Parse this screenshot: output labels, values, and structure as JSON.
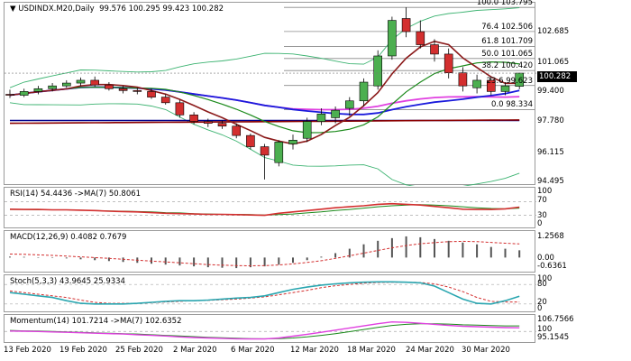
{
  "header": {
    "icon": "chart-arrow-down-icon",
    "symbol": "USDINDX.M20,Daily",
    "ohlc": "99.576 100.295 99.423 100.282"
  },
  "price_axis": [
    "102.685",
    "101.065",
    "99.400",
    "97.780",
    "96.115",
    "94.495"
  ],
  "current_price": "100.282",
  "fib_levels": [
    {
      "label": "100.0 103.795",
      "value": 103.795
    },
    {
      "label": "76.4 102.506",
      "value": 102.506
    },
    {
      "label": "61.8 101.709",
      "value": 101.709
    },
    {
      "label": "50.0 101.065",
      "value": 101.065
    },
    {
      "label": "38.2 100.420",
      "value": 100.42
    },
    {
      "label": "23.6 99.623",
      "value": 99.623
    },
    {
      "label": "0.0 98.334",
      "value": 98.334
    }
  ],
  "rsi": {
    "title": "RSI(14) 54.4436 ->MA(7) 50.8061",
    "axis": [
      "100",
      "70",
      "30",
      "0"
    ]
  },
  "macd": {
    "title": "MACD(12,26,9) 0.4082 0.7679",
    "axis": [
      "1.2568",
      "0.00",
      "-0.6361"
    ]
  },
  "stoch": {
    "title": "Stoch(5,3,3) 43.9645 25.9334",
    "axis": [
      "100",
      "80",
      "20",
      "0"
    ]
  },
  "momentum": {
    "title": "Momentum(14) 101.7214 ->MA(7) 102.6352",
    "axis": [
      "106.7566",
      "100",
      "95.1545"
    ]
  },
  "x_labels": [
    "13 Feb 2020",
    "19 Feb 2020",
    "25 Feb 2020",
    "2 Mar 2020",
    "6 Mar 2020",
    "12 Mar 2020",
    "18 Mar 2020",
    "24 Mar 2020",
    "30 Mar 2020"
  ],
  "colors": {
    "bull": "#4caf50",
    "bear": "#d32f2f",
    "ma_blue": "#1a1adc",
    "ma_red": "#8b1a1a",
    "ma_magenta": "#e040e0",
    "ma_green": "#1b8a1b",
    "band": "#3cb371",
    "dark_red": "#8b0000",
    "dark_blue": "#00008b",
    "stoch_main": "#2aa6b0"
  },
  "chart_data": {
    "type": "candlestick",
    "timeframe": "Daily",
    "candles": [
      {
        "o": 99.15,
        "h": 99.4,
        "l": 98.95,
        "c": 99.1
      },
      {
        "o": 99.1,
        "h": 99.45,
        "l": 99.0,
        "c": 99.3
      },
      {
        "o": 99.3,
        "h": 99.6,
        "l": 99.15,
        "c": 99.45
      },
      {
        "o": 99.45,
        "h": 99.75,
        "l": 99.3,
        "c": 99.6
      },
      {
        "o": 99.6,
        "h": 99.9,
        "l": 99.5,
        "c": 99.75
      },
      {
        "o": 99.75,
        "h": 100.05,
        "l": 99.6,
        "c": 99.9
      },
      {
        "o": 99.9,
        "h": 100.1,
        "l": 99.55,
        "c": 99.65
      },
      {
        "o": 99.65,
        "h": 99.8,
        "l": 99.35,
        "c": 99.45
      },
      {
        "o": 99.45,
        "h": 99.6,
        "l": 99.2,
        "c": 99.35
      },
      {
        "o": 99.35,
        "h": 99.5,
        "l": 99.15,
        "c": 99.3
      },
      {
        "o": 99.3,
        "h": 99.45,
        "l": 98.9,
        "c": 99.0
      },
      {
        "o": 99.0,
        "h": 99.15,
        "l": 98.6,
        "c": 98.7
      },
      {
        "o": 98.7,
        "h": 98.85,
        "l": 97.9,
        "c": 98.05
      },
      {
        "o": 98.05,
        "h": 98.2,
        "l": 97.55,
        "c": 97.7
      },
      {
        "o": 97.7,
        "h": 97.85,
        "l": 97.4,
        "c": 97.6
      },
      {
        "o": 97.6,
        "h": 97.75,
        "l": 97.3,
        "c": 97.45
      },
      {
        "o": 97.45,
        "h": 97.6,
        "l": 96.8,
        "c": 96.95
      },
      {
        "o": 96.95,
        "h": 97.05,
        "l": 96.2,
        "c": 96.35
      },
      {
        "o": 96.35,
        "h": 96.5,
        "l": 94.6,
        "c": 95.9
      },
      {
        "o": 95.5,
        "h": 96.7,
        "l": 95.3,
        "c": 96.6
      },
      {
        "o": 96.5,
        "h": 97.0,
        "l": 96.2,
        "c": 96.7
      },
      {
        "o": 96.8,
        "h": 97.9,
        "l": 96.6,
        "c": 97.7
      },
      {
        "o": 97.7,
        "h": 98.4,
        "l": 97.5,
        "c": 98.1
      },
      {
        "o": 97.9,
        "h": 98.5,
        "l": 97.6,
        "c": 98.3
      },
      {
        "o": 98.4,
        "h": 99.0,
        "l": 98.0,
        "c": 98.8
      },
      {
        "o": 98.8,
        "h": 100.0,
        "l": 98.5,
        "c": 99.8
      },
      {
        "o": 99.6,
        "h": 101.5,
        "l": 99.4,
        "c": 101.2
      },
      {
        "o": 101.2,
        "h": 103.3,
        "l": 101.0,
        "c": 103.1
      },
      {
        "o": 103.2,
        "h": 103.8,
        "l": 102.2,
        "c": 102.5
      },
      {
        "o": 102.5,
        "h": 103.1,
        "l": 101.6,
        "c": 101.8
      },
      {
        "o": 101.8,
        "h": 102.1,
        "l": 100.9,
        "c": 101.3
      },
      {
        "o": 101.3,
        "h": 101.6,
        "l": 100.0,
        "c": 100.3
      },
      {
        "o": 100.3,
        "h": 100.6,
        "l": 99.3,
        "c": 99.6
      },
      {
        "o": 99.5,
        "h": 100.2,
        "l": 99.2,
        "c": 99.9
      },
      {
        "o": 99.9,
        "h": 100.1,
        "l": 99.1,
        "c": 99.3
      },
      {
        "o": 99.3,
        "h": 99.8,
        "l": 99.1,
        "c": 99.6
      },
      {
        "o": 99.576,
        "h": 100.295,
        "l": 99.423,
        "c": 100.282
      }
    ],
    "ylim": [
      94.4,
      103.9
    ],
    "rsi": [
      48,
      47,
      47,
      46,
      46,
      45,
      44,
      42,
      41,
      40,
      38,
      36,
      35,
      34,
      33,
      33,
      32,
      31,
      30,
      36,
      40,
      44,
      48,
      52,
      55,
      58,
      62,
      64,
      62,
      60,
      56,
      52,
      48,
      47,
      47,
      49,
      54
    ],
    "rsi_ma": [
      47,
      47,
      46,
      46,
      46,
      45,
      44,
      43,
      42,
      41,
      40,
      38,
      37,
      35,
      34,
      33,
      33,
      32,
      31,
      32,
      34,
      37,
      40,
      44,
      47,
      51,
      55,
      58,
      60,
      61,
      60,
      58,
      55,
      52,
      50,
      49,
      51
    ],
    "macd_hist": [
      0.05,
      0.04,
      0.02,
      0.0,
      -0.05,
      -0.1,
      -0.15,
      -0.2,
      -0.25,
      -0.3,
      -0.35,
      -0.4,
      -0.45,
      -0.5,
      -0.55,
      -0.58,
      -0.6,
      -0.55,
      -0.5,
      -0.4,
      -0.3,
      -0.15,
      0.05,
      0.25,
      0.5,
      0.75,
      0.95,
      1.1,
      1.2,
      1.15,
      1.05,
      0.95,
      0.85,
      0.75,
      0.6,
      0.5,
      0.41
    ],
    "macd_signal": [
      0.2,
      0.18,
      0.15,
      0.12,
      0.08,
      0.04,
      0.0,
      -0.05,
      -0.1,
      -0.15,
      -0.2,
      -0.25,
      -0.3,
      -0.35,
      -0.4,
      -0.43,
      -0.46,
      -0.47,
      -0.46,
      -0.42,
      -0.36,
      -0.28,
      -0.18,
      -0.05,
      0.1,
      0.25,
      0.4,
      0.55,
      0.68,
      0.78,
      0.85,
      0.9,
      0.92,
      0.9,
      0.86,
      0.81,
      0.77
    ],
    "stoch_k": [
      55,
      50,
      45,
      40,
      30,
      22,
      20,
      20,
      20,
      22,
      25,
      28,
      30,
      30,
      32,
      35,
      38,
      40,
      45,
      55,
      65,
      72,
      78,
      82,
      85,
      87,
      88,
      88,
      87,
      85,
      75,
      55,
      35,
      22,
      20,
      30,
      44
    ],
    "stoch_d": [
      60,
      55,
      50,
      45,
      40,
      32,
      25,
      22,
      22,
      22,
      24,
      26,
      28,
      30,
      31,
      33,
      35,
      38,
      42,
      48,
      55,
      62,
      70,
      76,
      80,
      84,
      86,
      87,
      87,
      86,
      82,
      72,
      58,
      40,
      28,
      26,
      26
    ],
    "momentum": [
      100.2,
      100.1,
      100.0,
      99.8,
      99.6,
      99.4,
      99.2,
      99.0,
      98.8,
      98.5,
      98.2,
      97.9,
      97.5,
      97.2,
      97.0,
      96.8,
      96.6,
      96.5,
      96.5,
      97.0,
      97.8,
      98.7,
      99.6,
      100.6,
      101.6,
      102.6,
      103.6,
      104.4,
      104.2,
      103.8,
      103.3,
      102.8,
      102.4,
      102.2,
      102.0,
      101.8,
      101.7
    ],
    "momentum_ma": [
      100.5,
      100.3,
      100.2,
      100.0,
      99.8,
      99.6,
      99.4,
      99.2,
      99.0,
      98.8,
      98.5,
      98.2,
      97.9,
      97.6,
      97.3,
      97.1,
      96.9,
      96.7,
      96.6,
      96.7,
      97.0,
      97.5,
      98.2,
      99.0,
      99.9,
      100.9,
      101.9,
      102.8,
      103.3,
      103.6,
      103.6,
      103.4,
      103.1,
      102.9,
      102.7,
      102.6,
      102.6
    ]
  }
}
